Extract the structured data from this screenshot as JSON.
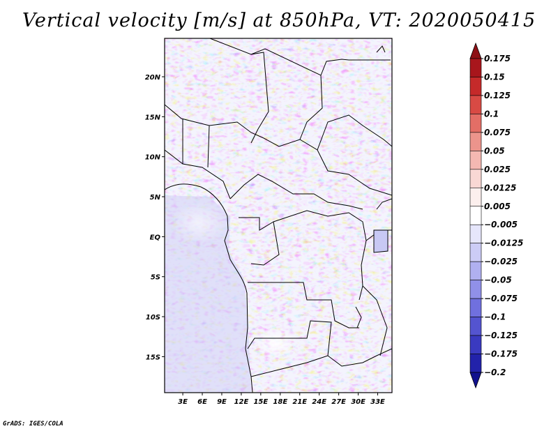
{
  "map": {
    "title": "Vertical velocity [m/s] at 850hPa, VT: 2020050415",
    "credit": "GrADS: IGES/COLA",
    "lat_labels": [
      "20N",
      "15N",
      "10N",
      "5N",
      "EQ",
      "5S",
      "10S",
      "15S"
    ],
    "lat_values": [
      20,
      15,
      10,
      5,
      0,
      -5,
      -10,
      -15
    ],
    "lon_labels": [
      "3E",
      "6E",
      "9E",
      "12E",
      "15E",
      "18E",
      "21E",
      "24E",
      "27E",
      "30E",
      "33E"
    ],
    "lon_values": [
      3,
      6,
      9,
      12,
      15,
      18,
      21,
      24,
      27,
      30,
      33
    ],
    "extent": {
      "lon_min": 0.2,
      "lon_max": 35.2,
      "lat_min": -19.5,
      "lat_max": 24.8
    }
  },
  "colorbar": {
    "labels": [
      "0.175",
      "0.15",
      "0.125",
      "0.1",
      "0.075",
      "0.05",
      "0.025",
      "0.0125",
      "0.005",
      "−0.005",
      "−0.0125",
      "−0.025",
      "−0.05",
      "−0.075",
      "−0.1",
      "−0.125",
      "−0.175",
      "−0.2"
    ],
    "colors": [
      "#8e1016",
      "#a8161c",
      "#c52a2a",
      "#d84a44",
      "#e36e66",
      "#ec948c",
      "#f4b8b2",
      "#f9d8d4",
      "#fcefed",
      "#ffffff",
      "#e6e6fb",
      "#ccccf6",
      "#b0b0f0",
      "#9090e8",
      "#7070de",
      "#5454d0",
      "#3a3ac0",
      "#2222aa",
      "#12128e"
    ]
  }
}
